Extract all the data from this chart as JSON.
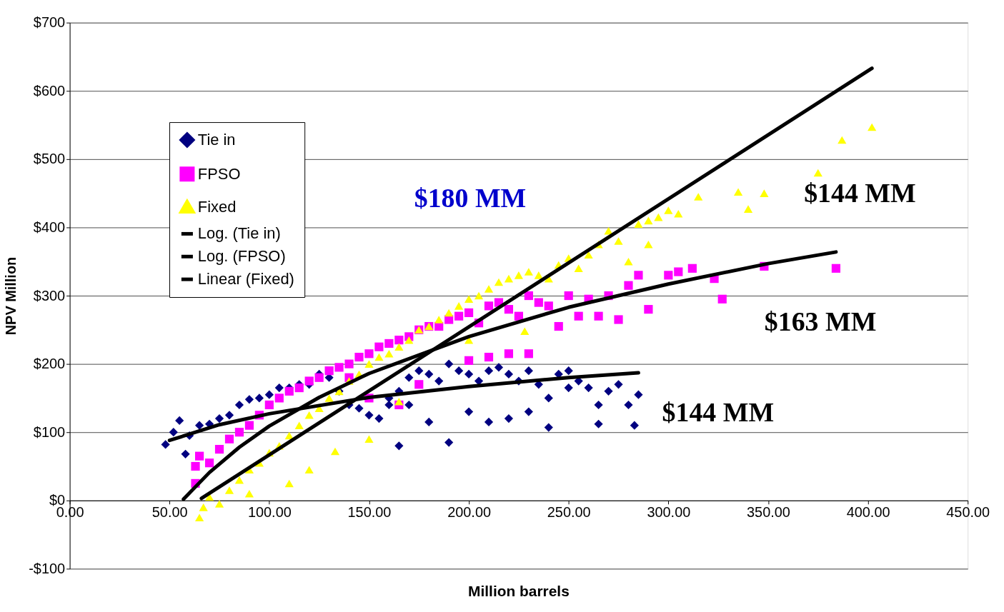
{
  "chart_data": {
    "type": "scatter",
    "xlabel": "Million barrels",
    "ylabel": "NPV Million",
    "xlim": [
      0,
      450
    ],
    "ylim": [
      -100,
      700
    ],
    "xticks": [
      {
        "value": 0,
        "label": "0.00"
      },
      {
        "value": 50,
        "label": "50.00"
      },
      {
        "value": 100,
        "label": "100.00"
      },
      {
        "value": 150,
        "label": "150.00"
      },
      {
        "value": 200,
        "label": "200.00"
      },
      {
        "value": 250,
        "label": "250.00"
      },
      {
        "value": 300,
        "label": "300.00"
      },
      {
        "value": 350,
        "label": "350.00"
      },
      {
        "value": 400,
        "label": "400.00"
      },
      {
        "value": 450,
        "label": "450.00"
      }
    ],
    "yticks": [
      {
        "value": -100,
        "label": "-$100"
      },
      {
        "value": 0,
        "label": "$0"
      },
      {
        "value": 100,
        "label": "$100"
      },
      {
        "value": 200,
        "label": "$200"
      },
      {
        "value": 300,
        "label": "$300"
      },
      {
        "value": 400,
        "label": "$400"
      },
      {
        "value": 500,
        "label": "$500"
      },
      {
        "value": 600,
        "label": "$600"
      },
      {
        "value": 700,
        "label": "$700"
      }
    ],
    "grid": "y",
    "legend": "top left",
    "series": [
      {
        "name": "Tie in",
        "marker": "diamond",
        "color": "#000080",
        "x": [
          48,
          52,
          55,
          58,
          60,
          65,
          70,
          75,
          80,
          85,
          90,
          95,
          100,
          105,
          110,
          115,
          120,
          125,
          130,
          135,
          140,
          145,
          150,
          155,
          160,
          165,
          170,
          175,
          180,
          185,
          190,
          195,
          200,
          205,
          210,
          215,
          220,
          225,
          230,
          235,
          240,
          245,
          250,
          255,
          260,
          265,
          270,
          275,
          280,
          283,
          285,
          165,
          190,
          210,
          220,
          240,
          265,
          230,
          180,
          200,
          250,
          160,
          170
        ],
        "values": [
          82,
          100,
          117,
          68,
          95,
          110,
          112,
          120,
          125,
          140,
          148,
          150,
          155,
          165,
          165,
          170,
          170,
          185,
          180,
          160,
          140,
          135,
          125,
          120,
          150,
          160,
          180,
          190,
          185,
          175,
          200,
          190,
          185,
          175,
          190,
          195,
          185,
          175,
          190,
          170,
          150,
          185,
          190,
          175,
          165,
          140,
          160,
          170,
          140,
          110,
          155,
          80,
          85,
          115,
          120,
          107,
          112,
          130,
          115,
          130,
          165,
          140,
          140
        ]
      },
      {
        "name": "FPSO",
        "marker": "square",
        "color": "#ff00ff",
        "x": [
          63,
          63,
          65,
          70,
          75,
          80,
          85,
          90,
          95,
          100,
          105,
          110,
          115,
          120,
          125,
          130,
          135,
          140,
          145,
          150,
          155,
          160,
          165,
          170,
          175,
          180,
          185,
          190,
          195,
          200,
          205,
          210,
          215,
          220,
          225,
          230,
          235,
          240,
          245,
          250,
          255,
          260,
          265,
          270,
          275,
          280,
          285,
          290,
          300,
          305,
          312,
          323,
          327,
          348,
          384,
          165,
          175,
          200,
          210,
          220,
          230,
          150,
          140
        ],
        "values": [
          25,
          50,
          65,
          55,
          75,
          90,
          100,
          110,
          125,
          140,
          150,
          160,
          165,
          175,
          180,
          190,
          195,
          200,
          210,
          215,
          225,
          230,
          235,
          240,
          250,
          255,
          255,
          265,
          270,
          275,
          260,
          285,
          290,
          280,
          270,
          300,
          290,
          285,
          255,
          300,
          270,
          295,
          270,
          300,
          265,
          315,
          330,
          280,
          330,
          335,
          340,
          325,
          295,
          343,
          340,
          140,
          170,
          205,
          210,
          215,
          215,
          150,
          180
        ]
      },
      {
        "name": "Fixed",
        "marker": "triangle",
        "color": "#ffff00",
        "x": [
          65,
          67,
          70,
          75,
          80,
          85,
          90,
          95,
          100,
          105,
          110,
          115,
          120,
          125,
          130,
          135,
          140,
          145,
          150,
          155,
          160,
          165,
          170,
          175,
          180,
          185,
          190,
          195,
          200,
          205,
          210,
          215,
          220,
          225,
          230,
          235,
          240,
          245,
          250,
          255,
          260,
          265,
          270,
          275,
          280,
          285,
          290,
          295,
          300,
          305,
          315,
          335,
          340,
          348,
          375,
          387,
          402,
          150,
          165,
          133,
          120,
          110,
          90,
          200,
          228,
          290
        ],
        "values": [
          -25,
          -10,
          5,
          -5,
          15,
          30,
          45,
          55,
          70,
          80,
          95,
          110,
          125,
          135,
          150,
          160,
          175,
          185,
          200,
          210,
          215,
          225,
          235,
          250,
          255,
          265,
          275,
          285,
          295,
          300,
          310,
          320,
          325,
          330,
          335,
          330,
          325,
          345,
          355,
          340,
          360,
          375,
          395,
          380,
          350,
          405,
          375,
          415,
          425,
          420,
          445,
          452,
          427,
          450,
          480,
          528,
          547,
          90,
          145,
          72,
          45,
          25,
          10,
          235,
          248,
          410
        ]
      },
      {
        "name": "Log. (Tie in)",
        "type": "line",
        "marker": "none",
        "color": "#000000",
        "x": [
          50,
          75,
          100,
          150,
          200,
          250,
          285
        ],
        "values": [
          88,
          111,
          127,
          151,
          167,
          180,
          187
        ]
      },
      {
        "name": "Log. (FPSO)",
        "type": "line",
        "marker": "none",
        "color": "#000000",
        "x": [
          57,
          70,
          85,
          100,
          125,
          150,
          200,
          250,
          300,
          350,
          384
        ],
        "values": [
          2,
          41,
          78,
          109,
          151,
          186,
          240,
          283,
          317,
          347,
          364
        ]
      },
      {
        "name": "Linear (Fixed)",
        "type": "line",
        "marker": "none",
        "color": "#000000",
        "x": [
          66,
          402
        ],
        "values": [
          3,
          633
        ]
      }
    ],
    "annotations": [
      "$180 MM",
      "$144 MM",
      "$163 MM",
      "$144 MM"
    ]
  }
}
